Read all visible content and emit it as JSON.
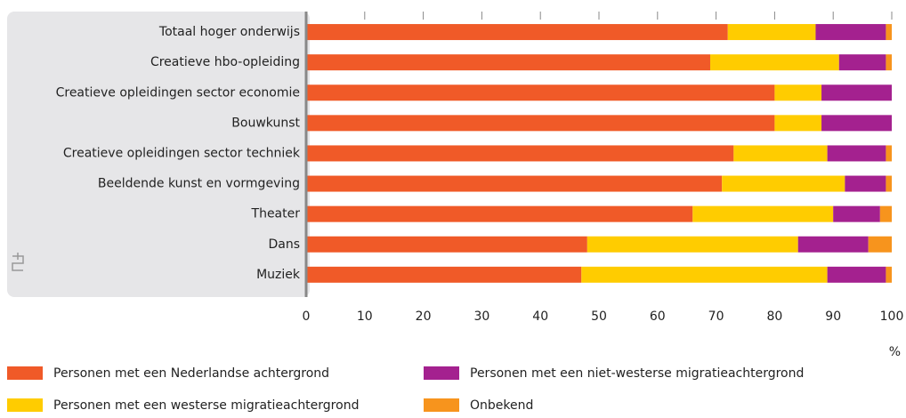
{
  "chart_data": {
    "type": "stacked-barh",
    "categories": [
      "Totaal hoger onderwijs",
      "Creatieve hbo-opleiding",
      "Creatieve opleidingen sector economie",
      "Bouwkunst",
      "Creatieve opleidingen sector techniek",
      "Beeldende kunst en vormgeving",
      "Theater",
      "Dans",
      "Muziek"
    ],
    "series": [
      {
        "name": "Personen met een Nederlandse achtergrond",
        "color": "#f05a28",
        "values": [
          72,
          69,
          80,
          80,
          73,
          71,
          66,
          48,
          47
        ]
      },
      {
        "name": "Personen met een westerse migratieachtergrond",
        "color": "#ffcc00",
        "values": [
          15,
          22,
          8,
          8,
          16,
          21,
          24,
          36,
          42
        ]
      },
      {
        "name": "Personen met een niet-westerse migratieachtergrond",
        "color": "#a4218f",
        "values": [
          12,
          8,
          12,
          12,
          10,
          7,
          8,
          12,
          10
        ]
      },
      {
        "name": "Onbekend",
        "color": "#f7941d",
        "values": [
          1,
          1,
          0,
          0,
          1,
          1,
          2,
          4,
          1
        ]
      }
    ],
    "xlim": [
      0,
      100
    ],
    "xticks": [
      0,
      10,
      20,
      30,
      40,
      50,
      60,
      70,
      80,
      90,
      100
    ],
    "xlabel": "%"
  }
}
